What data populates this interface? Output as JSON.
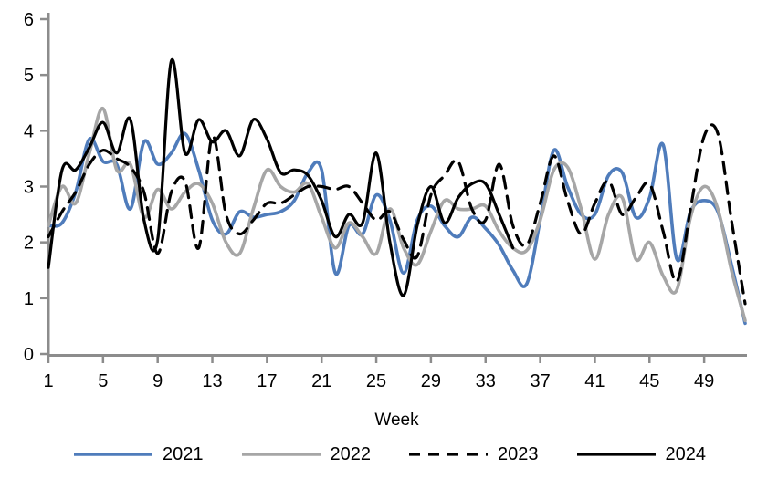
{
  "chart_data": {
    "type": "line",
    "title": "",
    "xlabel": "Week",
    "ylabel": "",
    "xlim": [
      1,
      52
    ],
    "ylim": [
      0,
      6
    ],
    "yticks": [
      0,
      1,
      2,
      3,
      4,
      5,
      6
    ],
    "xticks": [
      1,
      5,
      9,
      13,
      17,
      21,
      25,
      29,
      33,
      37,
      41,
      45,
      49
    ],
    "grid": false,
    "legend_position": "bottom",
    "axis_color": "#8C8C8C",
    "text_color": "#000000",
    "weeks": [
      1,
      2,
      3,
      4,
      5,
      6,
      7,
      8,
      9,
      10,
      11,
      12,
      13,
      14,
      15,
      16,
      17,
      18,
      19,
      20,
      21,
      22,
      23,
      24,
      25,
      26,
      27,
      28,
      29,
      30,
      31,
      32,
      33,
      34,
      35,
      36,
      37,
      38,
      39,
      40,
      41,
      42,
      43,
      44,
      45,
      46,
      47,
      48,
      49,
      50,
      51,
      52
    ],
    "series": [
      {
        "name": "2021",
        "color": "#4F7CBB",
        "dash": null,
        "width": 3.6,
        "values": [
          2.3,
          2.35,
          2.9,
          3.85,
          3.45,
          3.4,
          2.6,
          3.8,
          3.4,
          3.6,
          3.95,
          3.3,
          2.4,
          2.15,
          2.55,
          2.45,
          2.5,
          2.55,
          2.75,
          3.25,
          3.3,
          1.45,
          2.3,
          2.15,
          2.85,
          2.4,
          1.45,
          2.4,
          2.65,
          2.3,
          2.1,
          2.45,
          2.25,
          1.95,
          1.5,
          1.25,
          2.4,
          3.65,
          3.0,
          2.5,
          2.5,
          3.2,
          3.25,
          2.45,
          2.8,
          3.75,
          1.7,
          2.55,
          2.75,
          2.55,
          1.6,
          0.55
        ]
      },
      {
        "name": "2022",
        "color": "#A6A6A6",
        "dash": null,
        "width": 3.6,
        "values": [
          2.3,
          3.0,
          2.7,
          3.6,
          4.4,
          3.3,
          3.4,
          2.45,
          2.95,
          2.6,
          2.9,
          3.05,
          2.7,
          2.0,
          1.8,
          2.6,
          3.3,
          3.0,
          2.9,
          3.05,
          2.45,
          1.9,
          2.35,
          2.1,
          1.8,
          2.6,
          1.9,
          1.6,
          2.2,
          2.75,
          2.6,
          2.6,
          2.65,
          2.2,
          1.9,
          1.85,
          2.4,
          3.3,
          3.35,
          2.6,
          1.7,
          2.5,
          2.8,
          1.7,
          2.0,
          1.4,
          1.15,
          2.45,
          3.0,
          2.6,
          1.5,
          0.6
        ]
      },
      {
        "name": "2023",
        "color": "#000000",
        "dash": "13 9",
        "width": 3.2,
        "values": [
          2.1,
          2.55,
          2.9,
          3.4,
          3.65,
          3.5,
          3.35,
          2.9,
          1.8,
          2.9,
          3.1,
          1.9,
          3.9,
          2.5,
          2.15,
          2.4,
          2.7,
          2.7,
          2.85,
          3.0,
          3.0,
          2.95,
          3.0,
          2.7,
          2.4,
          2.55,
          2.05,
          1.75,
          2.85,
          3.2,
          3.45,
          2.6,
          2.4,
          3.4,
          2.3,
          1.95,
          2.7,
          3.55,
          2.75,
          2.15,
          2.7,
          3.1,
          2.5,
          2.8,
          3.05,
          2.2,
          1.3,
          2.6,
          3.9,
          3.95,
          2.4,
          0.9
        ]
      },
      {
        "name": "2024",
        "color": "#000000",
        "dash": null,
        "width": 3.2,
        "values": [
          1.55,
          3.3,
          3.3,
          3.7,
          4.15,
          3.6,
          4.2,
          2.4,
          2.05,
          5.25,
          3.6,
          4.2,
          3.8,
          4.0,
          3.55,
          4.2,
          3.85,
          3.25,
          3.3,
          3.2,
          2.75,
          2.1,
          2.5,
          2.35,
          3.6,
          2.0,
          1.05,
          2.3,
          3.0,
          2.35,
          2.8,
          3.05,
          3.05,
          2.5,
          1.9,
          null,
          null,
          null,
          null,
          null,
          null,
          null,
          null,
          null,
          null,
          null,
          null,
          null,
          null,
          null,
          null,
          null
        ]
      }
    ]
  }
}
